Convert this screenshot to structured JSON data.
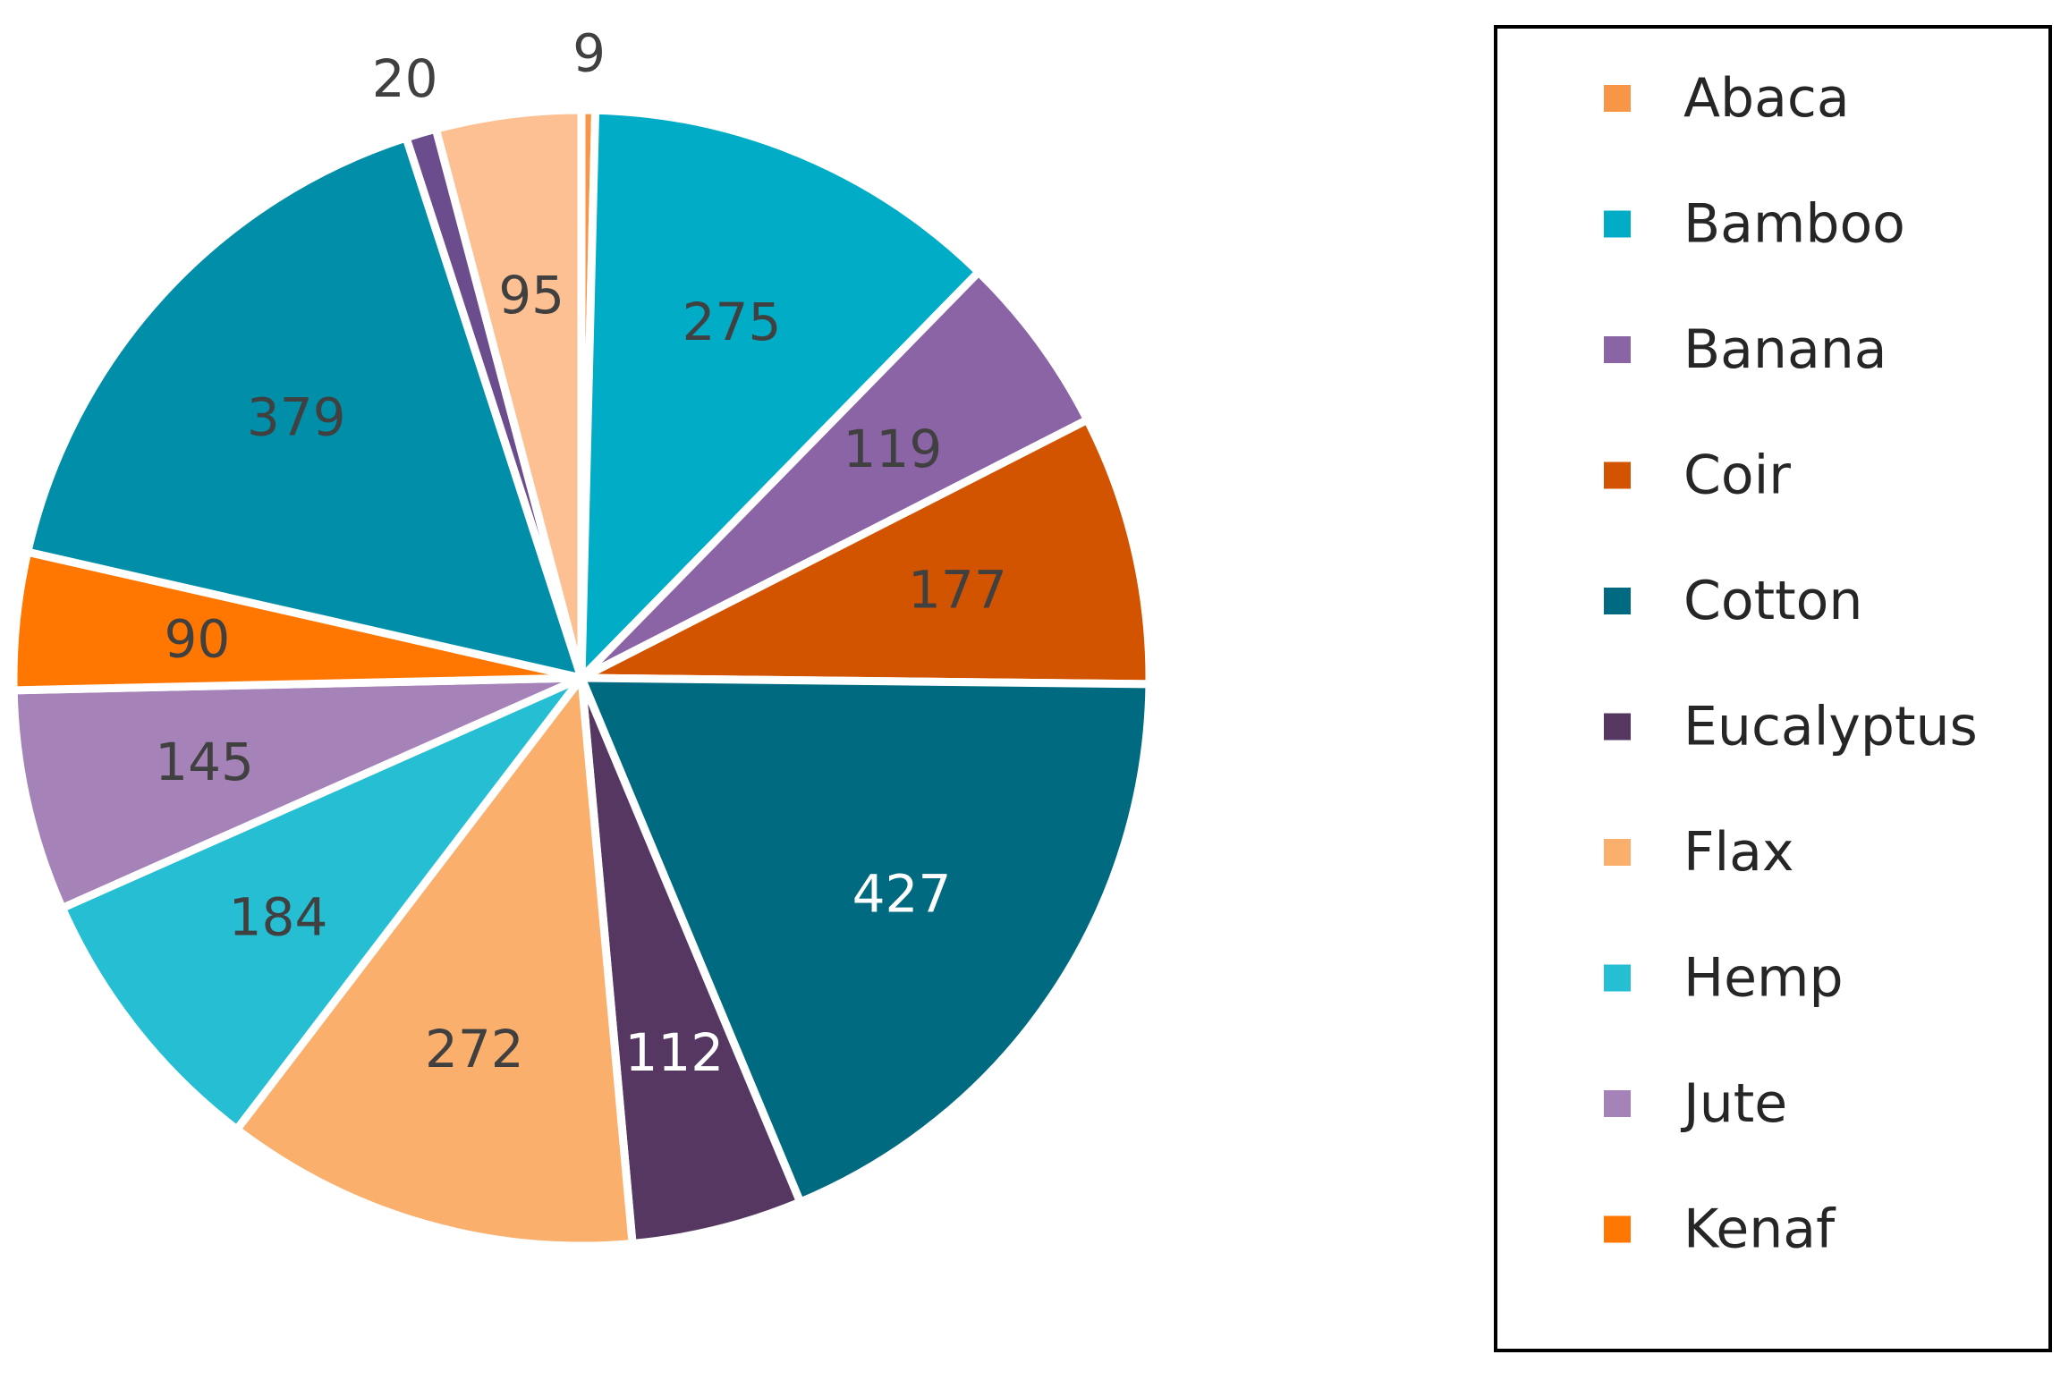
{
  "chart_data": {
    "type": "pie",
    "title": "",
    "legend_position": "right",
    "legend_title": "",
    "slices": [
      {
        "label": "Abaca",
        "value": 9,
        "color": "#F79646",
        "label_color": "#404040"
      },
      {
        "label": "Bamboo",
        "value": 275,
        "color": "#00ACC6",
        "label_color": "#404040"
      },
      {
        "label": "Banana",
        "value": 119,
        "color": "#8B64A6",
        "label_color": "#404040"
      },
      {
        "label": "Coir",
        "value": 177,
        "color": "#D35400",
        "label_color": "#404040"
      },
      {
        "label": "Cotton",
        "value": 427,
        "color": "#006A80",
        "label_color": "#FFFFFF"
      },
      {
        "label": "Eucalyptus",
        "value": 112,
        "color": "#553761",
        "label_color": "#FFFFFF"
      },
      {
        "label": "Flax",
        "value": 272,
        "color": "#FAAF6C",
        "label_color": "#404040"
      },
      {
        "label": "Hemp",
        "value": 184,
        "color": "#26BED2",
        "label_color": "#404040"
      },
      {
        "label": "Jute",
        "value": 145,
        "color": "#A583B8",
        "label_color": "#404040"
      },
      {
        "label": "Kenaf",
        "value": 90,
        "color": "#FF7700",
        "label_color": "#404040"
      },
      {
        "label": "",
        "value": 379,
        "color": "#008EA8",
        "label_color": "#404040"
      },
      {
        "label": "",
        "value": 20,
        "color": "#6B4C8C",
        "label_color": "#404040"
      },
      {
        "label": "",
        "value": 95,
        "color": "#FCC092",
        "label_color": "#404040"
      }
    ]
  }
}
